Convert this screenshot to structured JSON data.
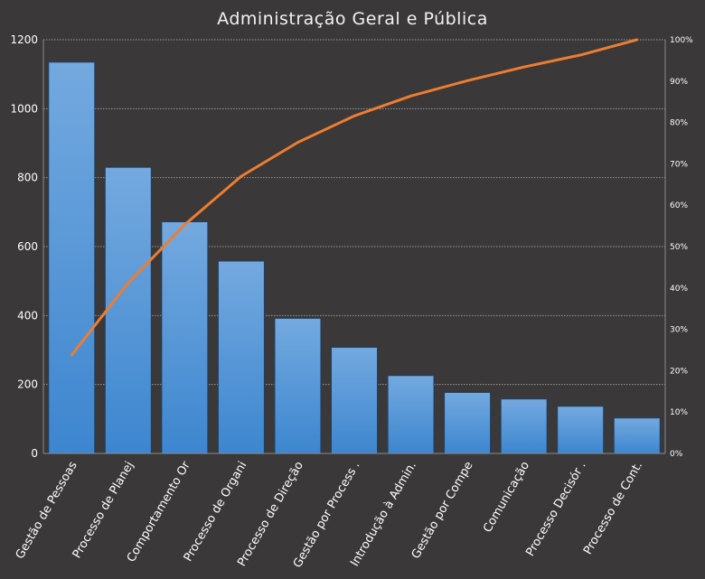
{
  "chart_data": {
    "type": "bar",
    "title": "Administração Geral e Pública",
    "categories": [
      "Gestão de Pessoas",
      "Processo de Planej",
      "Comportamento  Or",
      "Processo de Organi",
      "Processo de Direção",
      "Gestão por Process .",
      "Introdução à Admin.",
      "Gestão por Compe",
      "Comunicação",
      "Processo Decisór .",
      "Processo de Cont."
    ],
    "series": [
      {
        "type": "bar",
        "values": [
          1135,
          830,
          672,
          558,
          392,
          308,
          226,
          177,
          158,
          137,
          103
        ],
        "color": "#5b9bd5",
        "axis": "left"
      },
      {
        "type": "line",
        "values": [
          23.8,
          41.2,
          55.3,
          67.0,
          75.2,
          81.6,
          86.4,
          90.1,
          93.4,
          96.3,
          100
        ],
        "color": "#ed7d31",
        "axis": "right"
      }
    ],
    "ylim": [
      0,
      1200
    ],
    "yticks": [
      "0",
      "200",
      "400",
      "600",
      "800",
      "1000",
      "1200"
    ],
    "y2lim": [
      0,
      100
    ],
    "y2ticks": [
      "0%",
      "10%",
      "20%",
      "30%",
      "40%",
      "50%",
      "60%",
      "70%",
      "80%",
      "90%",
      "100%"
    ],
    "grid": true,
    "background": "#3a3838"
  }
}
